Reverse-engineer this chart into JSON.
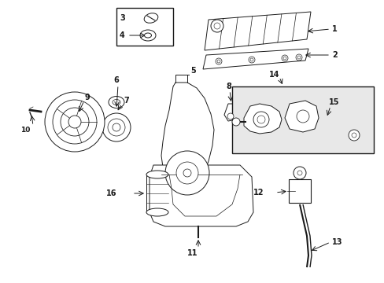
{
  "bg_color": "#ffffff",
  "line_color": "#1a1a1a",
  "fig_width": 4.89,
  "fig_height": 3.6,
  "dpi": 100,
  "gray_fill": "#e8e8e8"
}
